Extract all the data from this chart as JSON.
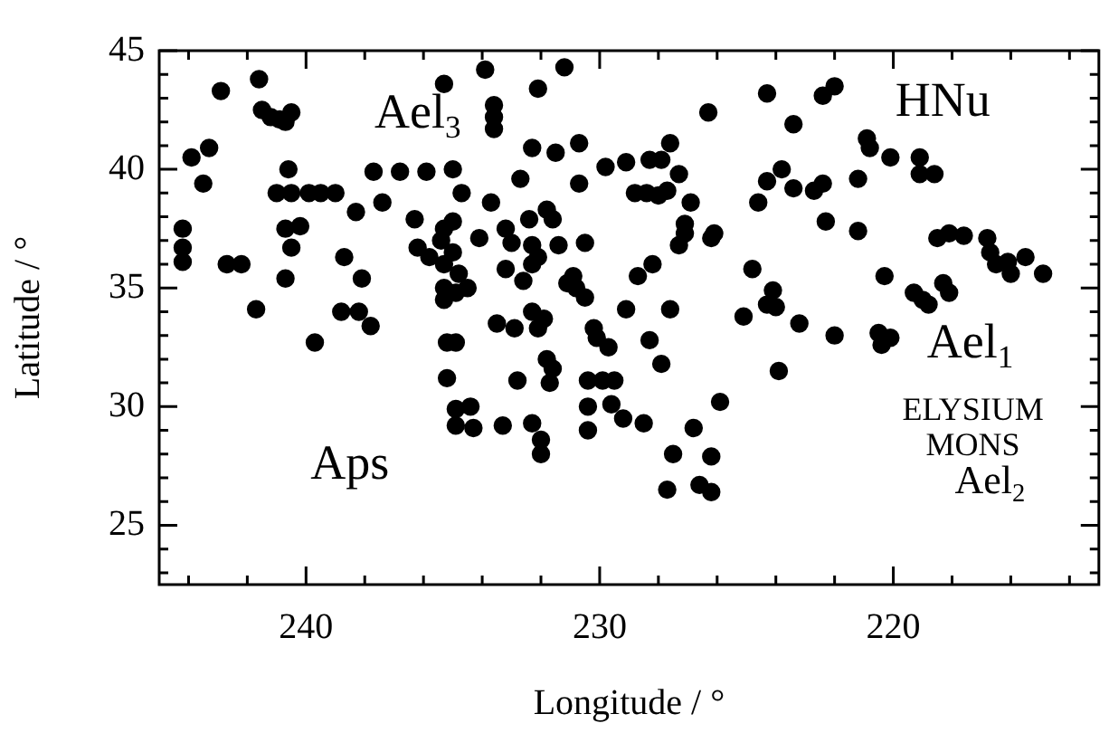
{
  "chart_data": {
    "type": "scatter",
    "xlabel": "Longitude / °",
    "ylabel": "Latitude / °",
    "xlim": [
      245,
      213
    ],
    "ylim": [
      22.5,
      45
    ],
    "xticks": [
      {
        "value": 244,
        "label": null
      },
      {
        "value": 242,
        "label": null
      },
      240,
      {
        "value": 238,
        "label": null
      },
      {
        "value": 236,
        "label": null
      },
      {
        "value": 234,
        "label": null
      },
      {
        "value": 232,
        "label": null
      },
      230,
      {
        "value": 228,
        "label": null
      },
      {
        "value": 226,
        "label": null
      },
      {
        "value": 224,
        "label": null
      },
      {
        "value": 222,
        "label": null
      },
      220,
      {
        "value": 218,
        "label": null
      },
      {
        "value": 216,
        "label": null
      },
      {
        "value": 214,
        "label": null
      }
    ],
    "yticks": [
      {
        "value": 23,
        "label": null
      },
      {
        "value": 24,
        "label": null
      },
      25,
      {
        "value": 26,
        "label": null
      },
      {
        "value": 27,
        "label": null
      },
      {
        "value": 28,
        "label": null
      },
      {
        "value": 29,
        "label": null
      },
      30,
      {
        "value": 31,
        "label": null
      },
      {
        "value": 32,
        "label": null
      },
      {
        "value": 33,
        "label": null
      },
      {
        "value": 34,
        "label": null
      },
      35,
      {
        "value": 36,
        "label": null
      },
      {
        "value": 37,
        "label": null
      },
      {
        "value": 38,
        "label": null
      },
      {
        "value": 39,
        "label": null
      },
      40,
      {
        "value": 41,
        "label": null
      },
      {
        "value": 42,
        "label": null
      },
      {
        "value": 43,
        "label": null
      },
      {
        "value": 44,
        "label": null
      },
      45
    ],
    "grid": false,
    "legend": false,
    "marker": "circle",
    "series": [
      {
        "color": "#000000",
        "x": [
          242.9,
          241.6,
          241.5,
          241.2,
          240.9,
          240.5,
          240.7,
          243.9,
          243.3,
          243.5,
          244.2,
          244.2,
          244.2,
          242.7,
          242.2,
          241.7,
          240.6,
          241.0,
          240.5,
          239.9,
          239.5,
          239.0,
          240.7,
          240.2,
          240.5,
          240.7,
          238.7,
          238.3,
          238.1,
          238.8,
          238.2,
          237.8,
          239.7,
          237.7,
          236.8,
          235.9,
          237.4,
          236.3,
          235.3,
          235.0,
          234.7,
          236.2,
          235.8,
          235.3,
          235.0,
          235.3,
          235.4,
          235.0,
          234.8,
          235.3,
          234.9,
          235.3,
          234.5,
          234.1,
          233.9,
          233.6,
          233.6,
          233.6,
          233.7,
          233.2,
          233.0,
          233.2,
          232.7,
          232.4,
          232.3,
          232.1,
          232.6,
          232.3,
          231.8,
          231.6,
          231.4,
          232.3,
          231.5,
          232.1,
          231.2,
          231.1,
          233.5,
          232.9,
          232.3,
          231.9,
          232.1,
          235.2,
          234.9,
          230.7,
          229.8,
          229.1,
          228.3,
          227.9,
          227.6,
          227.3,
          230.7,
          228.8,
          228.4,
          228.0,
          227.7,
          226.3,
          224.3,
          222.4,
          222.0,
          223.4,
          220.9,
          220.8,
          220.1,
          219.1,
          219.1,
          218.6,
          224.3,
          223.8,
          223.4,
          222.7,
          222.4,
          224.6,
          221.2,
          222.3,
          221.2,
          226.9,
          227.1,
          227.1,
          227.3,
          226.2,
          226.1,
          230.5,
          230.9,
          230.8,
          230.5,
          228.7,
          228.2,
          229.1,
          227.6,
          230.2,
          230.1,
          229.7,
          228.3,
          224.8,
          224.1,
          224.3,
          224.0,
          225.1,
          223.2,
          222.0,
          220.3,
          219.3,
          219.0,
          218.8,
          218.3,
          218.1,
          218.5,
          218.1,
          217.6,
          216.8,
          216.7,
          216.5,
          216.0,
          216.1,
          215.5,
          214.9,
          220.5,
          220.1,
          220.4,
          235.2,
          234.9,
          234.4,
          234.3,
          234.9,
          233.3,
          232.8,
          232.3,
          232.0,
          232.0,
          231.8,
          231.6,
          231.7,
          230.4,
          229.9,
          229.5,
          230.4,
          229.6,
          229.2,
          228.5,
          230.4,
          227.9,
          225.9,
          226.8,
          227.5,
          226.2,
          227.7,
          226.6,
          226.2,
          223.9
        ],
        "values": [
          43.3,
          43.8,
          42.5,
          42.2,
          42.1,
          42.4,
          42.0,
          40.5,
          40.9,
          39.4,
          37.5,
          36.7,
          36.1,
          36.0,
          36.0,
          34.1,
          40.0,
          39.0,
          39.0,
          39.0,
          39.0,
          39.0,
          37.5,
          37.6,
          36.7,
          35.4,
          36.3,
          38.2,
          35.4,
          34.0,
          34.0,
          33.4,
          32.7,
          39.9,
          39.9,
          39.9,
          38.6,
          37.9,
          43.6,
          40.0,
          39.0,
          36.7,
          36.3,
          36.0,
          36.5,
          37.5,
          37.0,
          37.8,
          35.6,
          35.0,
          34.8,
          34.5,
          35.0,
          37.1,
          44.2,
          42.7,
          42.2,
          41.7,
          38.6,
          37.5,
          36.9,
          35.8,
          39.6,
          37.9,
          36.8,
          36.3,
          35.3,
          36.0,
          38.3,
          37.9,
          36.8,
          40.9,
          40.7,
          43.4,
          44.3,
          35.2,
          33.5,
          33.3,
          34.0,
          33.7,
          33.3,
          32.7,
          32.7,
          41.1,
          40.1,
          40.3,
          40.4,
          40.4,
          41.1,
          39.8,
          39.4,
          39.0,
          39.0,
          38.9,
          39.1,
          42.4,
          43.2,
          43.1,
          43.5,
          41.9,
          41.3,
          40.9,
          40.5,
          40.5,
          39.8,
          39.8,
          39.5,
          40.0,
          39.2,
          39.1,
          39.4,
          38.6,
          39.6,
          37.8,
          37.4,
          38.6,
          37.7,
          37.3,
          36.8,
          37.1,
          37.3,
          36.9,
          35.5,
          35.0,
          34.6,
          35.5,
          36.0,
          34.1,
          34.1,
          33.3,
          32.9,
          32.5,
          32.8,
          35.8,
          34.9,
          34.3,
          34.2,
          33.8,
          33.5,
          33.0,
          35.5,
          34.8,
          34.5,
          34.3,
          35.2,
          34.8,
          37.1,
          37.3,
          37.2,
          37.1,
          36.5,
          36.0,
          35.6,
          36.1,
          36.3,
          35.6,
          33.1,
          32.9,
          32.6,
          31.2,
          29.9,
          30.0,
          29.1,
          29.2,
          29.2,
          31.1,
          29.3,
          28.6,
          28.0,
          32.0,
          31.6,
          31.0,
          31.1,
          31.1,
          31.1,
          30.0,
          30.1,
          29.5,
          29.3,
          29.0,
          31.8,
          30.2,
          29.1,
          28.0,
          27.9,
          26.5,
          26.7,
          26.4,
          31.5
        ]
      }
    ],
    "annotations": [
      "Ael$_{3}$",
      "HNu",
      "Ael$_{1}$",
      "ELYSIUM",
      "MONS",
      "Ael$_{2}$",
      "Aps"
    ]
  }
}
